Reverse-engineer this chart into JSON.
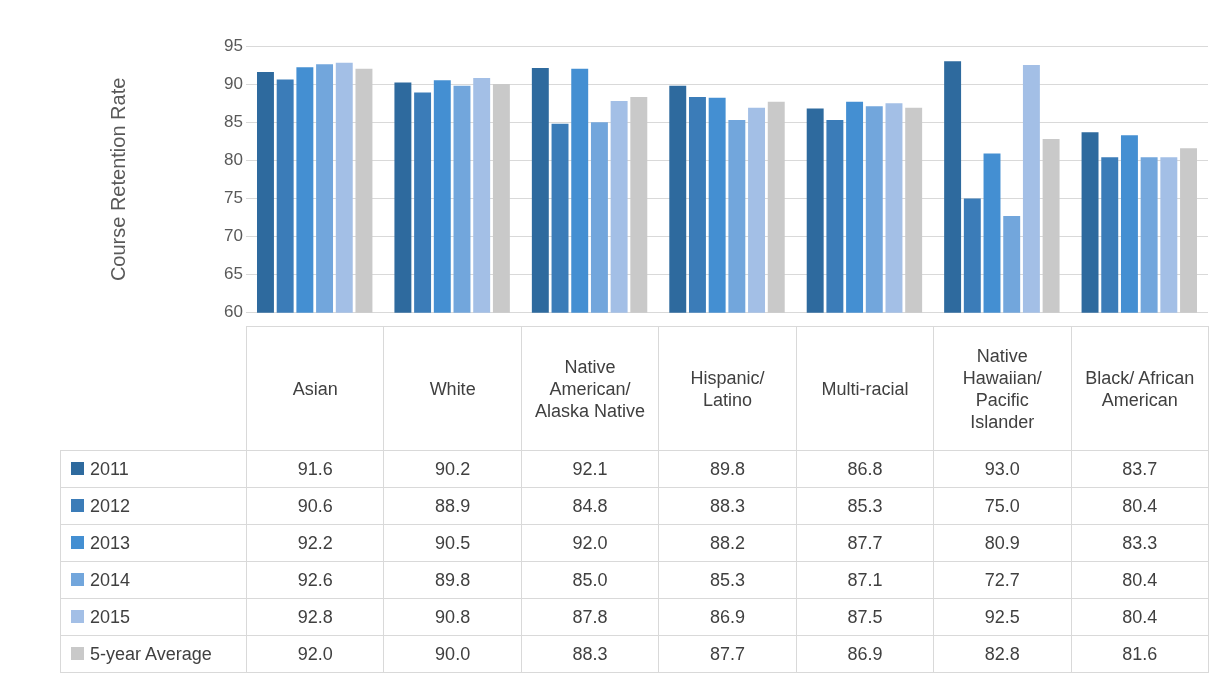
{
  "chart_data": {
    "type": "bar",
    "ylabel": "Course Retention Rate",
    "categories": [
      "Asian",
      "White",
      "Native American/ Alaska Native",
      "Hispanic/ Latino",
      "Multi-racial",
      "Native Hawaiian/ Pacific Islander",
      "Black/ African American"
    ],
    "series": [
      {
        "name": "2011",
        "color": "#2e6a9e",
        "values": [
          91.6,
          90.2,
          92.1,
          89.8,
          86.8,
          93.0,
          83.7
        ],
        "value_labels": [
          "91.6",
          "90.2",
          "92.1",
          "89.8",
          "86.8",
          "93.0",
          "83.7"
        ]
      },
      {
        "name": "2012",
        "color": "#3b7cb8",
        "values": [
          90.6,
          88.9,
          84.8,
          88.3,
          85.3,
          75.0,
          80.4
        ],
        "value_labels": [
          "90.6",
          "88.9",
          "84.8",
          "88.3",
          "85.3",
          "75.0",
          "80.4"
        ]
      },
      {
        "name": "2013",
        "color": "#448fd2",
        "values": [
          92.2,
          90.5,
          92.0,
          88.2,
          87.7,
          80.9,
          83.3
        ],
        "value_labels": [
          "92.2",
          "90.5",
          "92.0",
          "88.2",
          "87.7",
          "80.9",
          "83.3"
        ]
      },
      {
        "name": "2014",
        "color": "#72a6dc",
        "values": [
          92.6,
          89.8,
          85.0,
          85.3,
          87.1,
          72.7,
          80.4
        ],
        "value_labels": [
          "92.6",
          "89.8",
          "85.0",
          "85.3",
          "87.1",
          "72.7",
          "80.4"
        ]
      },
      {
        "name": "2015",
        "color": "#a3bfe6",
        "values": [
          92.8,
          90.8,
          87.8,
          86.9,
          87.5,
          92.5,
          80.4
        ],
        "value_labels": [
          "92.8",
          "90.8",
          "87.8",
          "86.9",
          "87.5",
          "92.5",
          "80.4"
        ]
      },
      {
        "name": "5-year Average",
        "color": "#c9c9c9",
        "values": [
          92.0,
          90.0,
          88.3,
          87.7,
          86.9,
          82.8,
          81.6
        ],
        "value_labels": [
          "92.0",
          "90.0",
          "88.3",
          "87.7",
          "86.9",
          "82.8",
          "81.6"
        ]
      }
    ],
    "ylim": [
      60,
      95
    ],
    "yticks": [
      60,
      65,
      70,
      75,
      80,
      85,
      90,
      95
    ],
    "grid": "y",
    "legend": "bottom"
  }
}
